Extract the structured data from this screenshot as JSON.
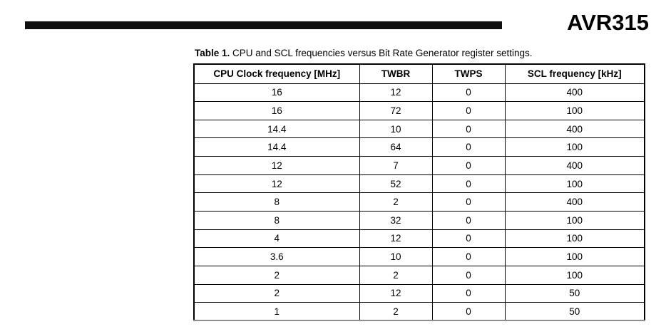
{
  "header": {
    "doc_number": "AVR315"
  },
  "table": {
    "caption_label": "Table 1.",
    "caption_text": "CPU and SCL frequencies versus Bit Rate Generator register settings.",
    "columns": [
      "CPU Clock frequency [MHz]",
      "TWBR",
      "TWPS",
      "SCL frequency [kHz]"
    ],
    "rows": [
      [
        "16",
        "12",
        "0",
        "400"
      ],
      [
        "16",
        "72",
        "0",
        "100"
      ],
      [
        "14.4",
        "10",
        "0",
        "400"
      ],
      [
        "14.4",
        "64",
        "0",
        "100"
      ],
      [
        "12",
        "7",
        "0",
        "400"
      ],
      [
        "12",
        "52",
        "0",
        "100"
      ],
      [
        "8",
        "2",
        "0",
        "400"
      ],
      [
        "8",
        "32",
        "0",
        "100"
      ],
      [
        "4",
        "12",
        "0",
        "100"
      ],
      [
        "3.6",
        "10",
        "0",
        "100"
      ],
      [
        "2",
        "2",
        "0",
        "100"
      ],
      [
        "2",
        "12",
        "0",
        "50"
      ],
      [
        "1",
        "2",
        "0",
        "50"
      ]
    ]
  },
  "colors": {
    "rule_bar": "#0f0f0f",
    "text": "#000000",
    "table_border": "#000000",
    "table_bottom_border": "#8e8e8e",
    "background": "#ffffff"
  }
}
